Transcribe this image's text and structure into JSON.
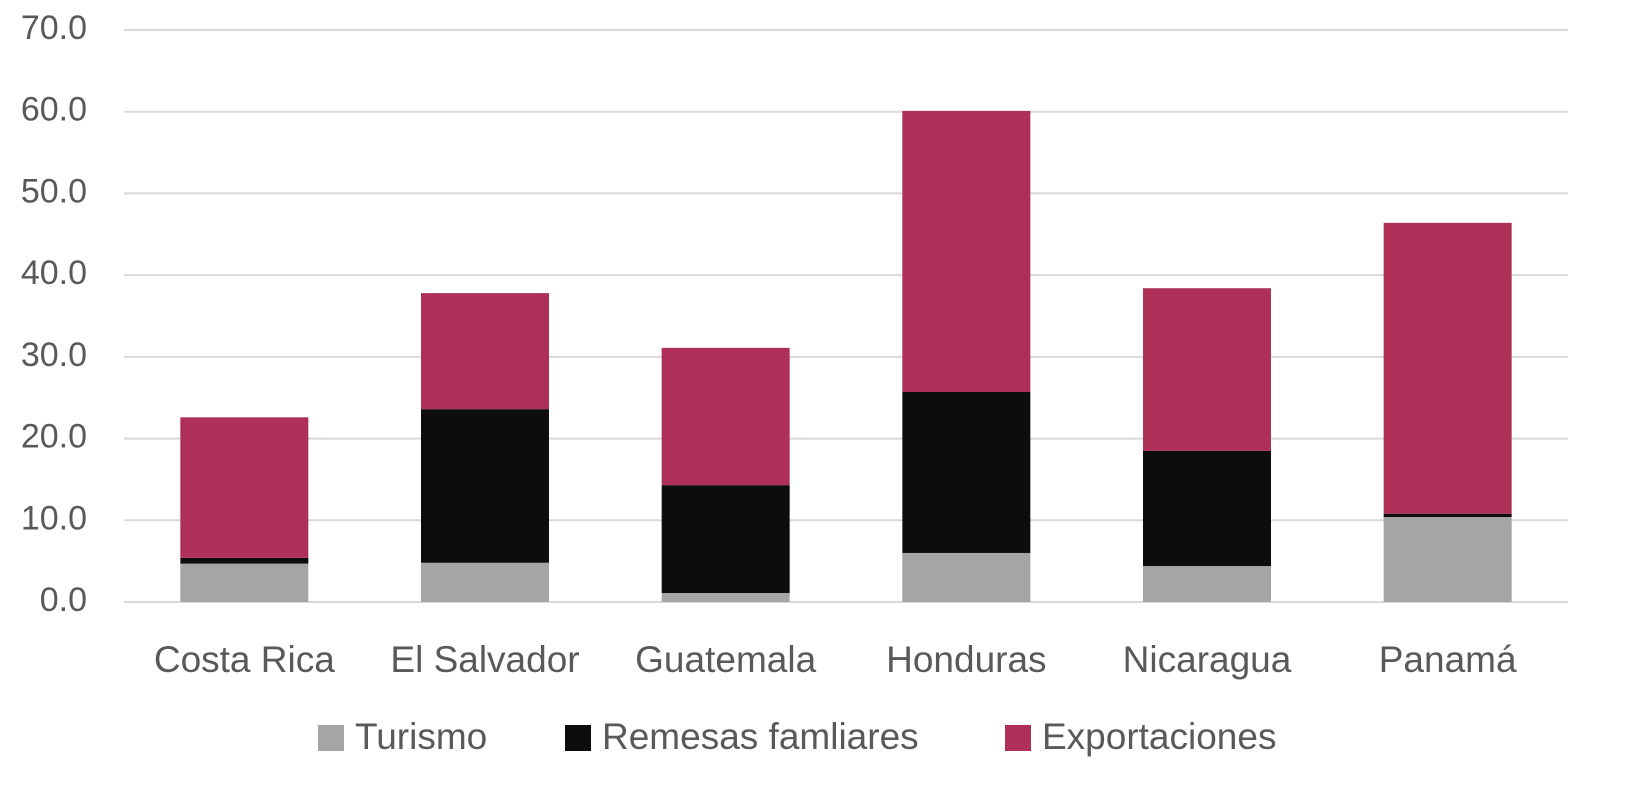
{
  "chart_data": {
    "type": "stacked_bar",
    "categories": [
      "Costa Rica",
      "El Salvador",
      "Guatemala",
      "Honduras",
      "Nicaragua",
      "Panamá"
    ],
    "series": [
      {
        "name": "Turismo",
        "color": "#a5a5a5",
        "values": [
          4.7,
          4.8,
          1.1,
          6.0,
          4.4,
          10.4
        ]
      },
      {
        "name": "Remesas famliares",
        "color": "#0d0d0d",
        "values": [
          0.7,
          18.8,
          13.2,
          19.7,
          14.1,
          0.4
        ]
      },
      {
        "name": "Exportaciones",
        "color": "#ae2f57",
        "values": [
          17.2,
          14.2,
          16.8,
          34.4,
          19.9,
          35.6
        ]
      }
    ],
    "ylim": [
      0,
      70
    ],
    "yticks": [
      {
        "value": 0,
        "label": "0.0"
      },
      {
        "value": 10,
        "label": "10.0"
      },
      {
        "value": 20,
        "label": "20.0"
      },
      {
        "value": 30,
        "label": "30.0"
      },
      {
        "value": 40,
        "label": "40.0"
      },
      {
        "value": 50,
        "label": "50.0"
      },
      {
        "value": 60,
        "label": "60.0"
      },
      {
        "value": 70,
        "label": "70.0"
      }
    ],
    "grid": true,
    "legend": "bottom"
  }
}
